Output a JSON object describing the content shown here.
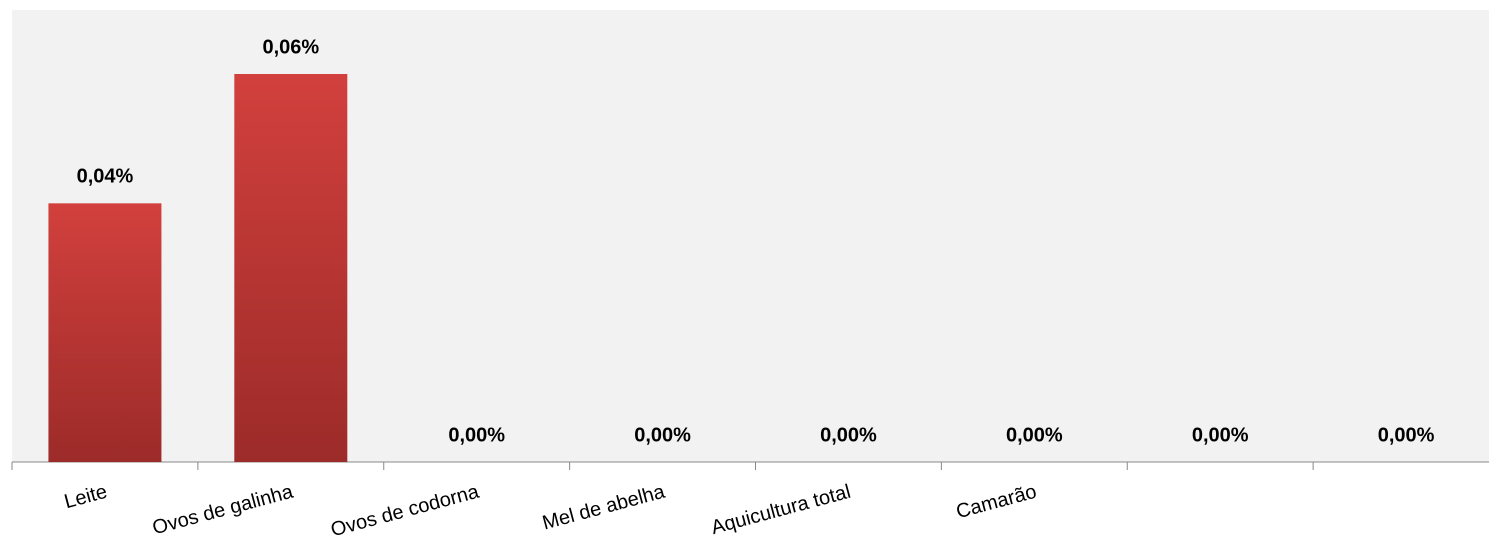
{
  "chart_data": {
    "type": "bar",
    "categories": [
      "Leite",
      "Ovos de galinha",
      "Ovos de codorna",
      "Mel de abelha",
      "Aquicultura total",
      "Camarão",
      null,
      null
    ],
    "values": [
      0.04,
      0.06,
      0,
      0,
      0,
      0,
      0,
      0
    ],
    "value_labels": [
      "0,04%",
      "0,06%",
      "0,00%",
      "0,00%",
      "0,00%",
      "0,00%",
      "0,00%",
      "0,00%"
    ],
    "color": "#c0393a"
  }
}
